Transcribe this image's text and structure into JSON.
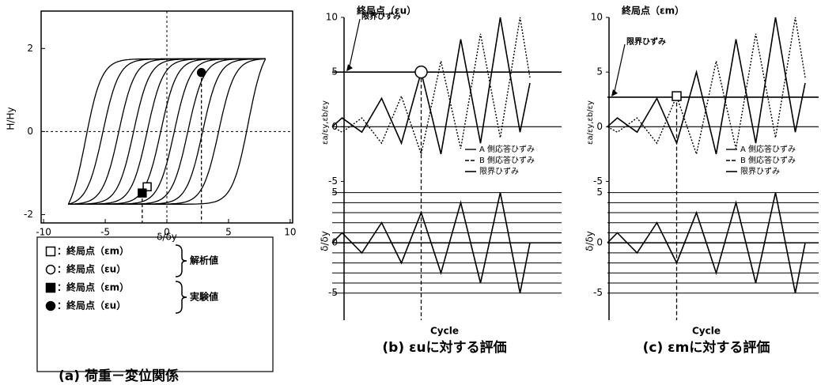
{
  "chart_data": [
    {
      "type": "hysteresis",
      "ylabel": "H/Hy",
      "xlabel": "δ/δy",
      "xlim": [
        -10.2,
        10.2
      ],
      "ylim": [
        -2.2,
        2.9
      ],
      "xticks": [
        -10,
        -5,
        0,
        5,
        10
      ],
      "yticks": [
        -2,
        0,
        2
      ],
      "color": "#000000",
      "peak": [
        8,
        1.75
      ],
      "loop_shifts": [
        -6.6,
        -5.2,
        -3.9,
        -2.7,
        -1.6,
        -0.5,
        0.6,
        1.7,
        2.9,
        4.2,
        6.6
      ],
      "points": [
        {
          "x": -1.6,
          "y": -1.33,
          "marker": "square",
          "filled": false
        },
        {
          "x": -2,
          "y": -1.48,
          "marker": "square",
          "filled": true
        },
        {
          "x": 2.8,
          "y": 1.42,
          "marker": "circle",
          "filled": true
        }
      ],
      "legend": [
        {
          "label": "：終局点（εm）",
          "marker": "square",
          "filled": false
        },
        {
          "label": "：終局点（εu）",
          "marker": "circle",
          "filled": false
        },
        {
          "label": "：終局点（εm）",
          "marker": "square",
          "filled": true
        },
        {
          "label": "：終局点（εu）",
          "marker": "circle",
          "filled": true
        }
      ],
      "groups": [
        "解析値",
        "実験値"
      ],
      "caption": "(a) 荷重－変位関係"
    },
    {
      "type": "line",
      "title": "終局点（εu）",
      "ylabel": "εa/εy,εb/εy",
      "ylim": [
        -5.4,
        10
      ],
      "yticks": [
        10,
        5,
        0,
        -5
      ],
      "series": [
        {
          "name": "A 側応答ひずみ",
          "color": "#000000",
          "style": "solid",
          "values": [
            0,
            0.8,
            -0.5,
            2.6,
            -1.5,
            5,
            -2.5,
            8,
            -1.5,
            10,
            -0.5,
            4
          ]
        },
        {
          "name": "B 側応答ひずみ",
          "color": "#000000",
          "style": "dotted",
          "values": [
            0,
            -0.5,
            0.8,
            -1.5,
            2.8,
            -2.5,
            6,
            -2,
            8.5,
            -1,
            10,
            4.5
          ]
        }
      ],
      "limit": {
        "name": "限界ひずみ",
        "value": 5
      },
      "annotation": "限界ひずみ",
      "marker": {
        "series": 0,
        "index": 5,
        "shape": "circle"
      }
    },
    {
      "type": "line",
      "ylabel": "δ/δy",
      "xlabel": "Cycle",
      "ylim": [
        -7.7,
        5.6
      ],
      "yticks": [
        5,
        0,
        -5
      ],
      "levels": [
        5,
        4,
        3,
        2,
        1,
        0,
        -1,
        -2,
        -3,
        -4,
        -5
      ],
      "color": "#000000",
      "values": [
        0,
        1,
        -1,
        2,
        -2,
        3,
        -3,
        4,
        -4,
        5,
        -5,
        0
      ],
      "caption": "(b) εuに対する評価"
    },
    {
      "type": "line",
      "title": "終局点（εm）",
      "ylabel": "εa/εy,εb/εy",
      "ylim": [
        -5.4,
        10
      ],
      "yticks": [
        10,
        5,
        0,
        -5
      ],
      "series": [
        {
          "name": "A 側応答ひずみ",
          "color": "#000000",
          "style": "solid",
          "values": [
            0,
            0.8,
            -0.5,
            2.6,
            -1.5,
            5,
            -2.5,
            8,
            -1.5,
            10,
            -0.5,
            4
          ]
        },
        {
          "name": "B 側応答ひずみ",
          "color": "#000000",
          "style": "dotted",
          "values": [
            0,
            -0.5,
            0.8,
            -1.5,
            2.8,
            -2.5,
            6,
            -2,
            8.5,
            -1,
            10,
            4.5
          ]
        }
      ],
      "limit": {
        "name": "限界ひずみ",
        "value": 2.7
      },
      "annotation": "限界ひずみ",
      "marker": {
        "series": 1,
        "index": 4,
        "shape": "square"
      }
    },
    {
      "type": "line",
      "ylabel": "δ/δy",
      "xlabel": "Cycle",
      "ylim": [
        -7.7,
        5.6
      ],
      "yticks": [
        5,
        0,
        -5
      ],
      "levels": [
        5,
        4,
        3,
        2,
        1,
        0,
        -1,
        -2,
        -3,
        -4,
        -5
      ],
      "color": "#000000",
      "values": [
        0,
        1,
        -1,
        2,
        -2,
        3,
        -3,
        4,
        -4,
        5,
        -5,
        0
      ],
      "caption": "(c) εmに対する評価"
    }
  ]
}
